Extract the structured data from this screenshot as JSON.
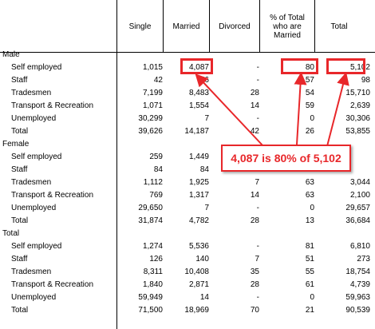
{
  "columns": [
    "Single",
    "Married",
    "Divorced",
    "% of Total who are Married",
    "Total"
  ],
  "sections": [
    {
      "label": "Male",
      "rows": [
        {
          "label": "Self employed",
          "values": [
            "1,015",
            "4,087",
            "-",
            "80",
            "5,102"
          ]
        },
        {
          "label": "Staff",
          "values": [
            "42",
            "56",
            "-",
            "57",
            "98"
          ]
        },
        {
          "label": "Tradesmen",
          "values": [
            "7,199",
            "8,483",
            "28",
            "54",
            "15,710"
          ]
        },
        {
          "label": "Transport & Recreation",
          "values": [
            "1,071",
            "1,554",
            "14",
            "59",
            "2,639"
          ]
        },
        {
          "label": "Unemployed",
          "values": [
            "30,299",
            "7",
            "-",
            "0",
            "30,306"
          ]
        },
        {
          "label": "Total",
          "values": [
            "39,626",
            "14,187",
            "42",
            "26",
            "53,855"
          ]
        }
      ]
    },
    {
      "label": "Female",
      "rows": [
        {
          "label": "Self employed",
          "values": [
            "259",
            "1,449",
            "",
            "",
            ""
          ]
        },
        {
          "label": "Staff",
          "values": [
            "84",
            "84",
            "",
            "",
            ""
          ]
        },
        {
          "label": "Tradesmen",
          "values": [
            "1,112",
            "1,925",
            "7",
            "63",
            "3,044"
          ]
        },
        {
          "label": "Transport & Recreation",
          "values": [
            "769",
            "1,317",
            "14",
            "63",
            "2,100"
          ]
        },
        {
          "label": "Unemployed",
          "values": [
            "29,650",
            "7",
            "-",
            "0",
            "29,657"
          ]
        },
        {
          "label": "Total",
          "values": [
            "31,874",
            "4,782",
            "28",
            "13",
            "36,684"
          ]
        }
      ]
    },
    {
      "label": "Total",
      "rows": [
        {
          "label": "Self employed",
          "values": [
            "1,274",
            "5,536",
            "-",
            "81",
            "6,810"
          ]
        },
        {
          "label": "Staff",
          "values": [
            "126",
            "140",
            "7",
            "51",
            "273"
          ]
        },
        {
          "label": "Tradesmen",
          "values": [
            "8,311",
            "10,408",
            "35",
            "55",
            "18,754"
          ]
        },
        {
          "label": "Transport & Recreation",
          "values": [
            "1,840",
            "2,871",
            "28",
            "61",
            "4,739"
          ]
        },
        {
          "label": "Unemployed",
          "values": [
            "59,949",
            "14",
            "-",
            "0",
            "59,963"
          ]
        },
        {
          "label": "Total",
          "values": [
            "71,500",
            "18,969",
            "70",
            "21",
            "90,539"
          ]
        }
      ]
    }
  ],
  "annotation": {
    "text": "4,087 is 80% of 5,102",
    "color": "#e8272a"
  }
}
